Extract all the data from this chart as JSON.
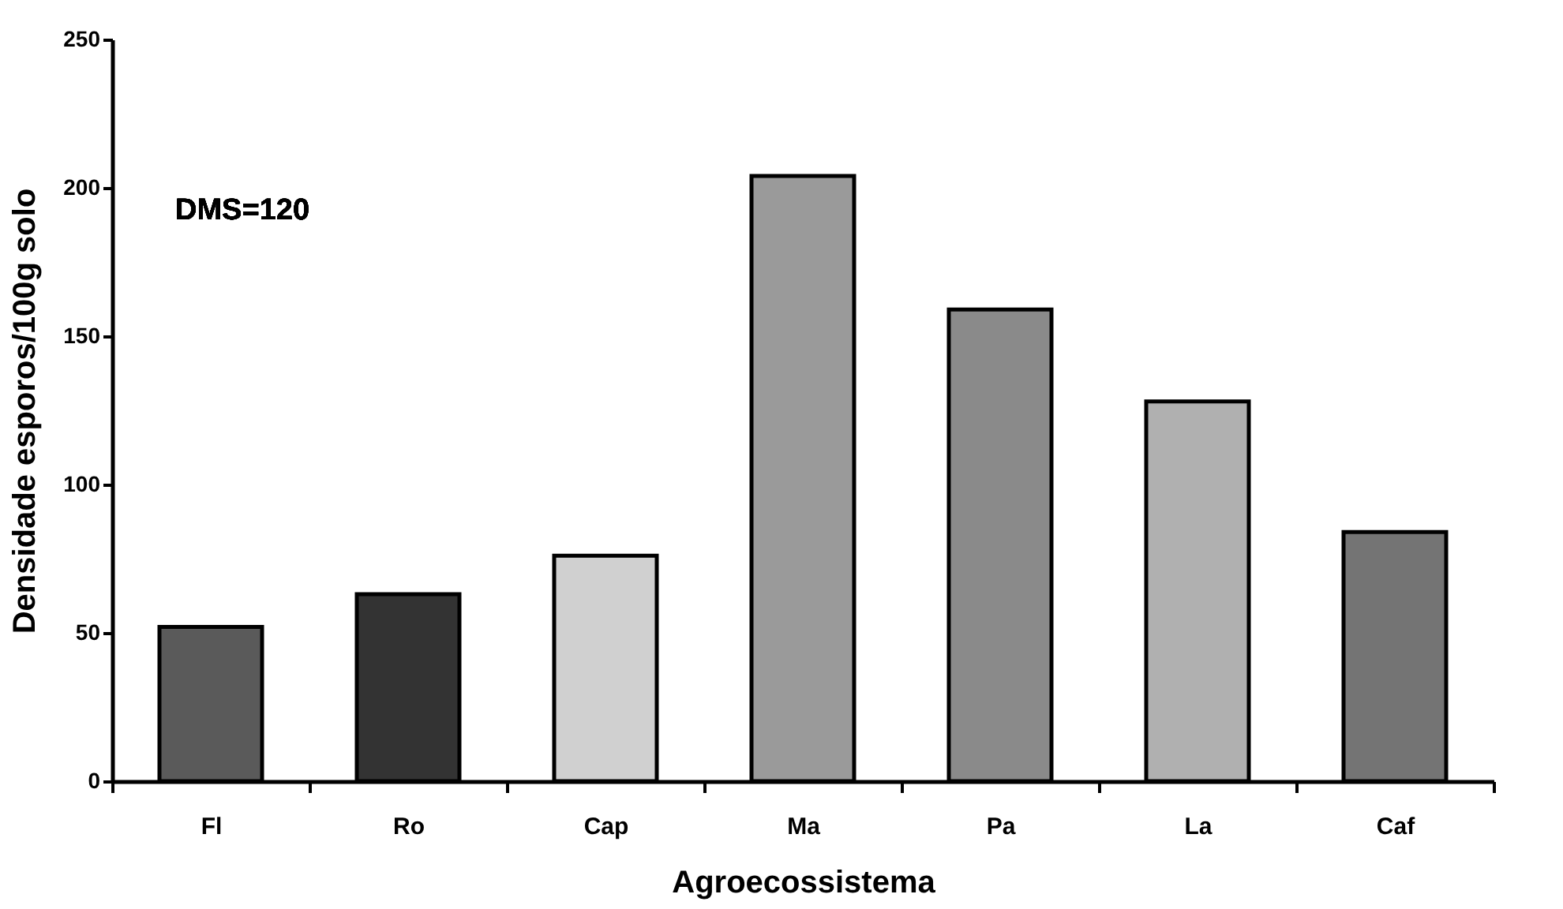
{
  "chart_data": {
    "type": "bar",
    "xlabel": "Agroecossistema",
    "ylabel": "Densidade esporos/100g solo",
    "categories": [
      "Fl",
      "Ro",
      "Cap",
      "Ma",
      "Pa",
      "La",
      "Caf"
    ],
    "values": [
      52,
      63,
      76,
      204,
      159,
      128,
      84
    ],
    "colors": [
      "#5a5a5a",
      "#333333",
      "#d0d0d0",
      "#9a9a9a",
      "#8a8a8a",
      "#b0b0b0",
      "#747474"
    ],
    "ylim": [
      0,
      250
    ],
    "yticks": [
      0,
      50,
      100,
      150,
      200,
      250
    ],
    "annotations": [
      "DMS=120"
    ],
    "grid": false
  }
}
